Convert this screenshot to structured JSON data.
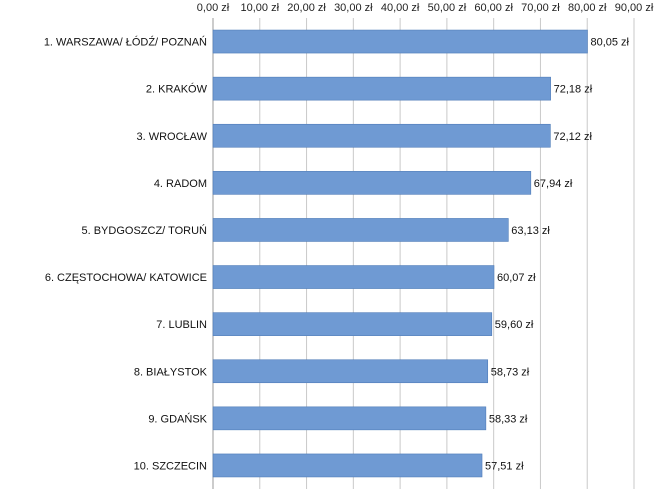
{
  "chart_data": {
    "type": "bar",
    "orientation": "horizontal",
    "categories": [
      "1. WARSZAWA/ ŁÓDŹ/ POZNAŃ",
      "2. KRAKÓW",
      "3. WROCŁAW",
      "4. RADOM",
      "5. BYDGOSZCZ/ TORUŃ",
      "6. CZĘSTOCHOWA/ KATOWICE",
      "7. LUBLIN",
      "8. BIAŁYSTOK",
      "9. GDAŃSK",
      "10. SZCZECIN"
    ],
    "values": [
      80.05,
      72.18,
      72.12,
      67.94,
      63.13,
      60.07,
      59.6,
      58.73,
      58.33,
      57.51
    ],
    "value_labels": [
      "80,05 zł",
      "72,18 zł",
      "72,12 zł",
      "67,94 zł",
      "63,13 zł",
      "60,07 zł",
      "59,60 zł",
      "58,73 zł",
      "58,33 zł",
      "57,51 zł"
    ],
    "ticks": [
      0,
      10,
      20,
      30,
      40,
      50,
      60,
      70,
      80,
      90
    ],
    "tick_labels": [
      "0,00 zł",
      "10,00 zł",
      "20,00 zł",
      "30,00 zł",
      "40,00 zł",
      "50,00 zł",
      "60,00 zł",
      "70,00 zł",
      "80,00 zł",
      "90,00 zł"
    ],
    "xlim": [
      0,
      90
    ],
    "x_axis_position": "top",
    "grid": true,
    "title": "",
    "xlabel": "",
    "ylabel": "",
    "bar_color": "#6f9ad3",
    "bar_border_color": "#4f7cb8"
  }
}
